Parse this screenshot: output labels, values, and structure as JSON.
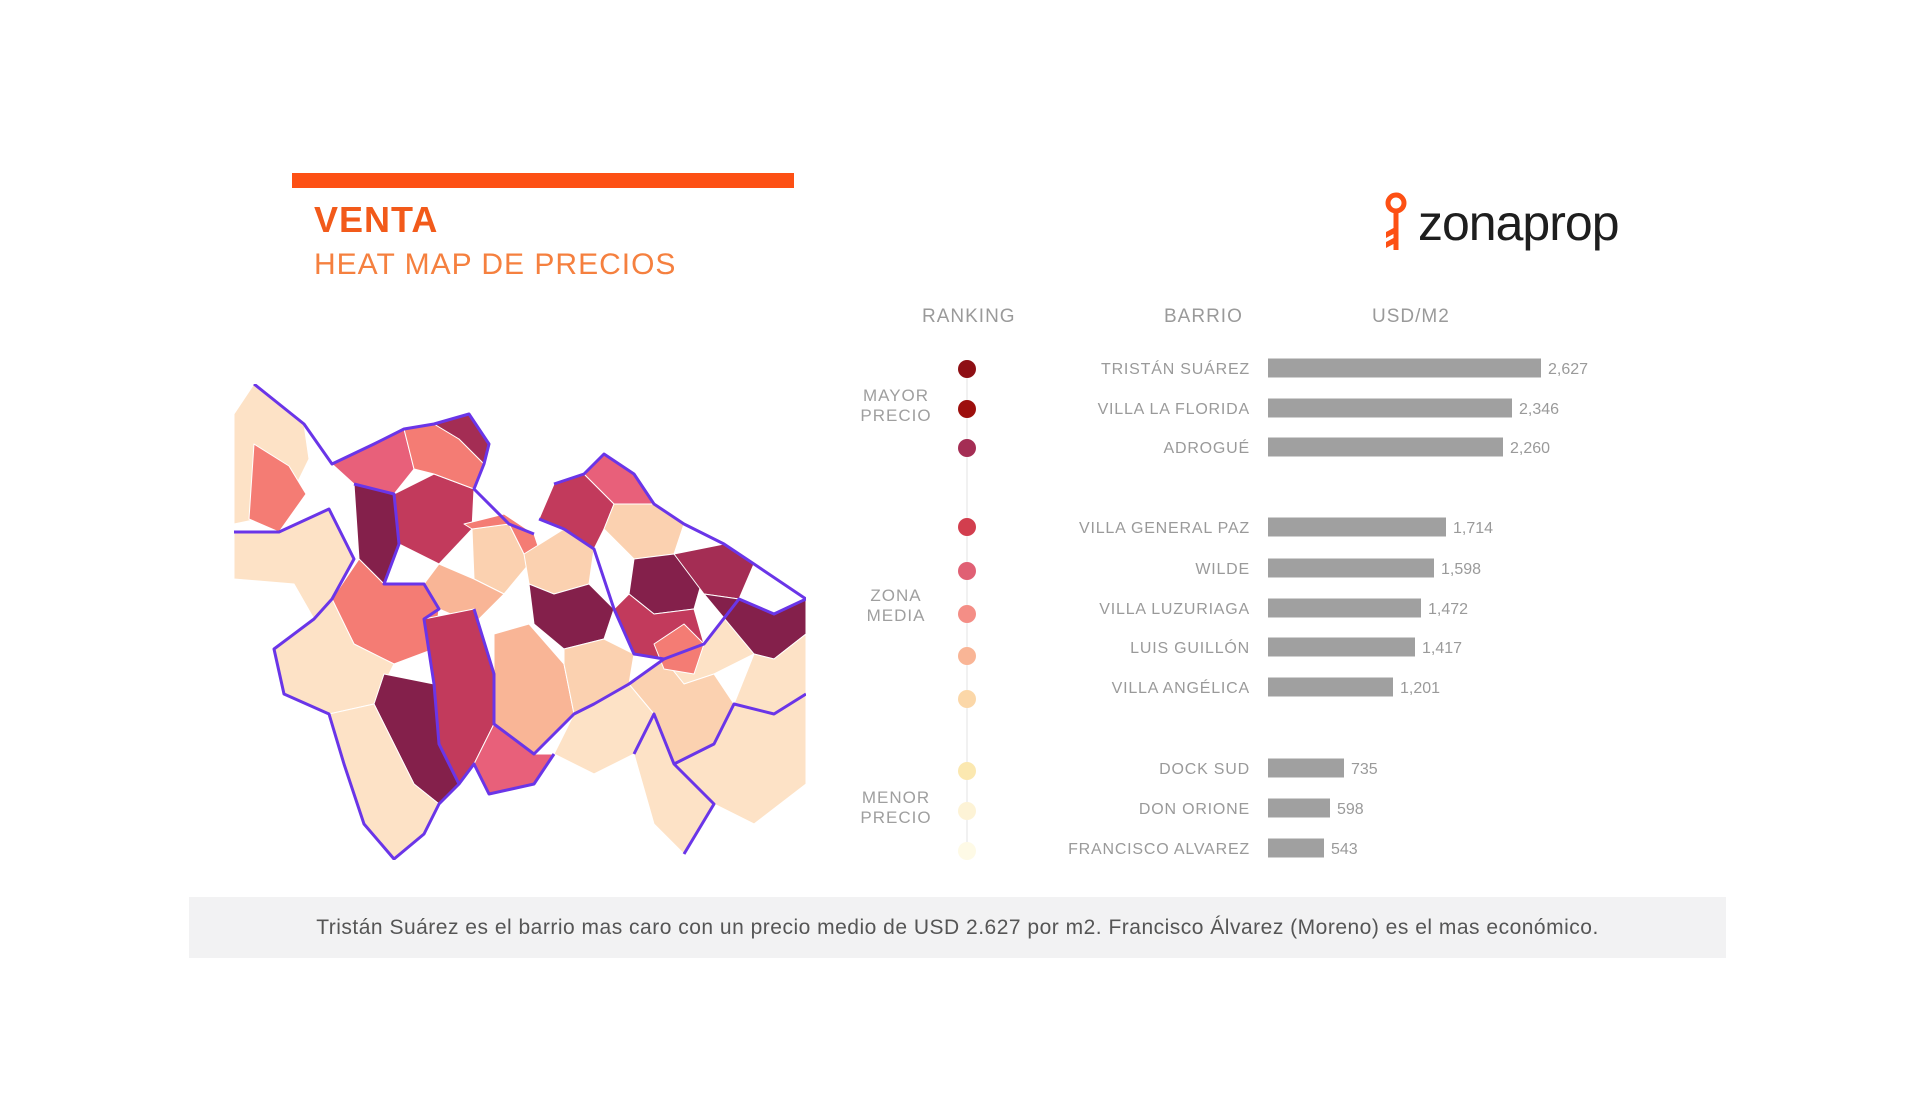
{
  "header": {
    "title": "VENTA",
    "subtitle": "HEAT MAP DE PRECIOS"
  },
  "brand": {
    "logo_text": "zonaprop",
    "icon": "key-icon",
    "color": "#fd5014"
  },
  "columns": {
    "ranking": "RANKING",
    "barrio": "BARRIO",
    "usd_m2": "USD/M2"
  },
  "groups": {
    "mayor_line1": "MAYOR",
    "mayor_line2": "PRECIO",
    "media_line1": "ZONA",
    "media_line2": "MEDIA",
    "menor_line1": "MENOR",
    "menor_line2": "PRECIO"
  },
  "colors": {
    "accent": "#fd5014",
    "bar": "#a0a0a0",
    "map_border": "#6a35e8"
  },
  "chart_data": {
    "type": "bar",
    "categories": [
      "TRISTÁN SUÁREZ",
      "VILLA LA FLORIDA",
      "ADROGUÉ",
      "VILLA GENERAL PAZ",
      "WILDE",
      "VILLA LUZURIAGA",
      "LUIS GUILLÓN",
      "VILLA ANGÉLICA",
      "DOCK SUD",
      "DON ORIONE",
      "FRANCISCO ALVAREZ"
    ],
    "values": [
      2627,
      2346,
      2260,
      1714,
      1598,
      1472,
      1417,
      1201,
      735,
      598,
      543
    ],
    "labels": [
      "2,627",
      "2,346",
      "2,260",
      "1,714",
      "1,598",
      "1,472",
      "1,417",
      "1,201",
      "735",
      "598",
      "543"
    ],
    "rank_colors": [
      "#8e0f14",
      "#9d0f0d",
      "#a42d54",
      "#d23e4e",
      "#e06074",
      "#f48e86",
      "#f9b596",
      "#fbd7a8",
      "#fbe8b0",
      "#fdf3d6",
      "#fefae6"
    ],
    "xlabel": "",
    "ylabel": "USD/M2",
    "ylim": [
      0,
      2627
    ]
  },
  "footer": {
    "text": "Tristán Suárez es el barrio mas caro con un precio medio de USD 2.627 por m2. Francisco  Álvarez (Moreno) es el mas económico."
  }
}
